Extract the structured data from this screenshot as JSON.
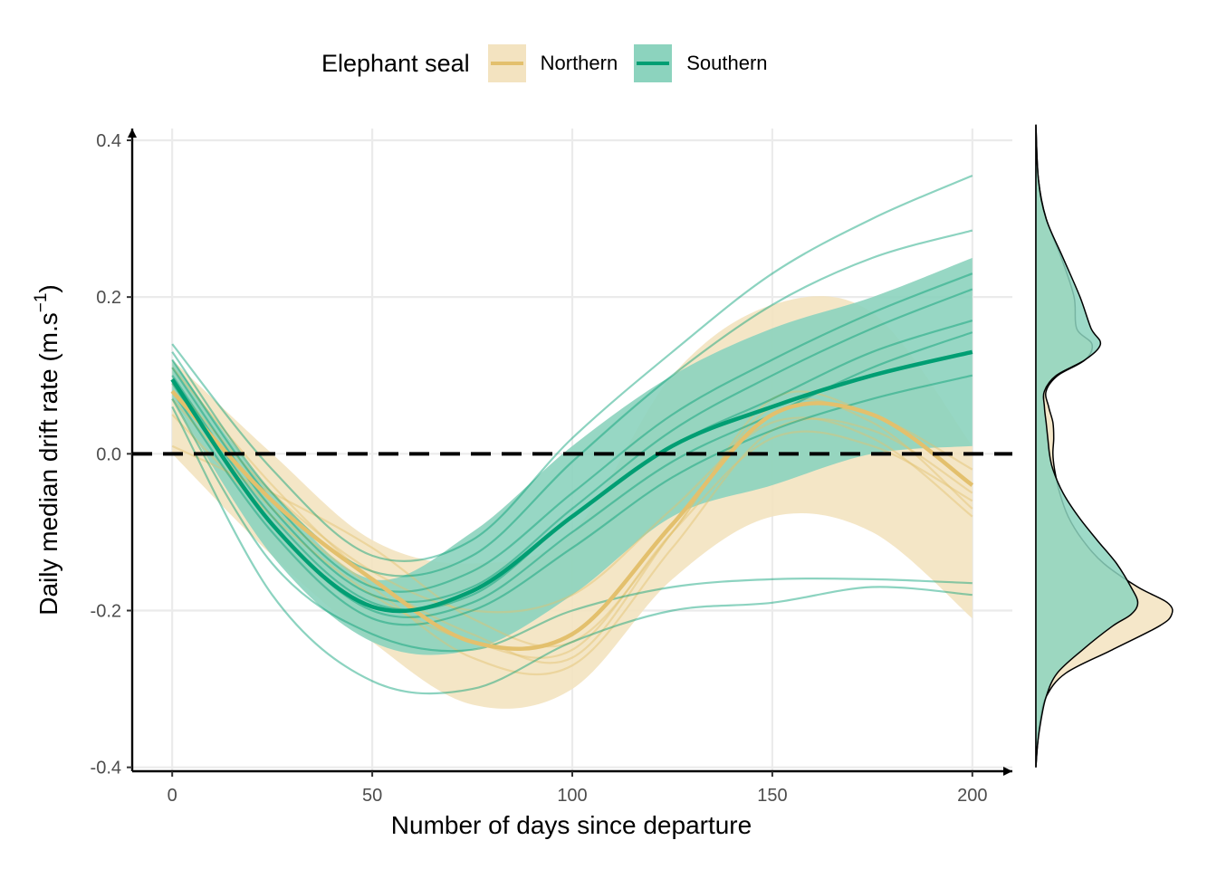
{
  "legend": {
    "title": "Elephant seal",
    "items": [
      {
        "label": "Northern",
        "line_color": "#E3C06D",
        "fill_color": "#F3E3C0"
      },
      {
        "label": "Southern",
        "line_color": "#009E73",
        "fill_color": "#8CD3BE"
      }
    ]
  },
  "chart_data": {
    "type": "line",
    "xlabel": "Number of days since departure",
    "ylabel": "Daily median drift rate (m.s",
    "ylabel_sup": "−1",
    "ylabel_close": ")",
    "xlim": [
      -10,
      210
    ],
    "ylim": [
      -0.405,
      0.415
    ],
    "x_ticks": [
      0,
      50,
      100,
      150,
      200
    ],
    "x_tick_labels": [
      "0",
      "50",
      "100",
      "150",
      "200"
    ],
    "y_ticks": [
      -0.4,
      -0.2,
      0.0,
      0.2,
      0.4
    ],
    "y_tick_labels": [
      "-0.4",
      "-0.2",
      "0.0",
      "0.2",
      "0.4"
    ],
    "grid": true,
    "reference_line": {
      "y": 0,
      "style": "dashed",
      "color": "#000000"
    },
    "series": [
      {
        "name": "Northern",
        "color": "#E3C06D",
        "fill_color": "#F3E3C0",
        "x": [
          0,
          25,
          50,
          75,
          100,
          125,
          150,
          175,
          200
        ],
        "mean": [
          0.08,
          -0.06,
          -0.16,
          -0.24,
          -0.23,
          -0.09,
          0.05,
          0.05,
          -0.04
        ],
        "lower": [
          0.0,
          -0.13,
          -0.24,
          -0.32,
          -0.3,
          -0.16,
          -0.08,
          -0.1,
          -0.21
        ],
        "upper": [
          0.12,
          0.0,
          -0.11,
          -0.14,
          -0.1,
          0.1,
          0.19,
          0.18,
          0.01
        ],
        "individuals": [
          [
            0.11,
            -0.04,
            -0.16,
            -0.23,
            -0.26,
            -0.1,
            0.06,
            0.04,
            -0.07
          ],
          [
            0.09,
            -0.05,
            -0.15,
            -0.2,
            -0.18,
            -0.07,
            0.04,
            0.02,
            -0.08
          ],
          [
            0.07,
            -0.07,
            -0.17,
            -0.26,
            -0.27,
            -0.12,
            0.03,
            0.03,
            -0.05
          ],
          [
            0.05,
            -0.08,
            -0.18,
            -0.24,
            -0.25,
            -0.1,
            0.02,
            0.01,
            -0.06
          ],
          [
            0.01,
            -0.05,
            -0.12,
            -0.21,
            -0.24,
            -0.1,
            0.07,
            0.05,
            -0.02
          ]
        ]
      },
      {
        "name": "Southern",
        "color": "#009E73",
        "fill_color": "#8CD3BE",
        "x": [
          0,
          25,
          50,
          75,
          100,
          125,
          150,
          175,
          200
        ],
        "mean": [
          0.095,
          -0.09,
          -0.195,
          -0.175,
          -0.08,
          0.01,
          0.06,
          0.1,
          0.13
        ],
        "lower": [
          0.07,
          -0.13,
          -0.24,
          -0.25,
          -0.18,
          -0.08,
          -0.04,
          0.0,
          0.01
        ],
        "upper": [
          0.12,
          -0.05,
          -0.16,
          -0.1,
          0.01,
          0.1,
          0.16,
          0.2,
          0.25
        ],
        "individuals": [
          [
            0.14,
            -0.02,
            -0.13,
            -0.11,
            0.02,
            0.13,
            0.23,
            0.3,
            0.355
          ],
          [
            0.13,
            -0.05,
            -0.15,
            -0.13,
            -0.01,
            0.1,
            0.19,
            0.25,
            0.285
          ],
          [
            0.12,
            -0.06,
            -0.17,
            -0.15,
            -0.05,
            0.05,
            0.12,
            0.18,
            0.23
          ],
          [
            0.11,
            -0.07,
            -0.18,
            -0.17,
            -0.07,
            0.03,
            0.1,
            0.16,
            0.21
          ],
          [
            0.1,
            -0.08,
            -0.19,
            -0.18,
            -0.08,
            0.01,
            0.07,
            0.13,
            0.17
          ],
          [
            0.09,
            -0.09,
            -0.2,
            -0.19,
            -0.1,
            -0.01,
            0.05,
            0.11,
            0.155
          ],
          [
            0.08,
            -0.1,
            -0.21,
            -0.2,
            -0.12,
            -0.03,
            0.03,
            0.07,
            0.1
          ],
          [
            0.07,
            -0.14,
            -0.23,
            -0.25,
            -0.2,
            -0.17,
            -0.16,
            -0.16,
            -0.165
          ],
          [
            0.06,
            -0.18,
            -0.29,
            -0.3,
            -0.24,
            -0.2,
            -0.19,
            -0.17,
            -0.18
          ]
        ]
      }
    ],
    "marginal_density": {
      "type": "density",
      "orientation": "vertical",
      "series": [
        {
          "name": "Northern",
          "fill_color": "#F3E3C0",
          "y": [
            0.42,
            0.35,
            0.3,
            0.25,
            0.2,
            0.16,
            0.14,
            0.12,
            0.1,
            0.08,
            0.06,
            0.04,
            0.02,
            0.0,
            -0.02,
            -0.05,
            -0.08,
            -0.11,
            -0.14,
            -0.17,
            -0.19,
            -0.205,
            -0.22,
            -0.25,
            -0.28,
            -0.31,
            -0.34,
            -0.37,
            -0.4
          ],
          "density": [
            0.0,
            0.03,
            0.12,
            0.3,
            0.45,
            0.48,
            0.66,
            0.58,
            0.26,
            0.12,
            0.15,
            0.2,
            0.21,
            0.2,
            0.22,
            0.28,
            0.38,
            0.55,
            0.8,
            1.2,
            1.55,
            1.6,
            1.45,
            0.9,
            0.35,
            0.12,
            0.05,
            0.02,
            0.0
          ]
        },
        {
          "name": "Southern",
          "fill_color": "#8CD3BE",
          "y": [
            0.42,
            0.35,
            0.3,
            0.25,
            0.2,
            0.16,
            0.14,
            0.12,
            0.1,
            0.08,
            0.06,
            0.04,
            0.02,
            0.0,
            -0.02,
            -0.05,
            -0.08,
            -0.11,
            -0.14,
            -0.17,
            -0.19,
            -0.205,
            -0.22,
            -0.25,
            -0.28,
            -0.31,
            -0.34,
            -0.37,
            -0.4
          ],
          "density": [
            0.0,
            0.03,
            0.12,
            0.32,
            0.52,
            0.65,
            0.76,
            0.58,
            0.24,
            0.1,
            0.1,
            0.12,
            0.14,
            0.16,
            0.2,
            0.32,
            0.5,
            0.72,
            0.95,
            1.12,
            1.2,
            1.12,
            0.9,
            0.55,
            0.25,
            0.12,
            0.06,
            0.02,
            0.0
          ]
        }
      ]
    }
  }
}
